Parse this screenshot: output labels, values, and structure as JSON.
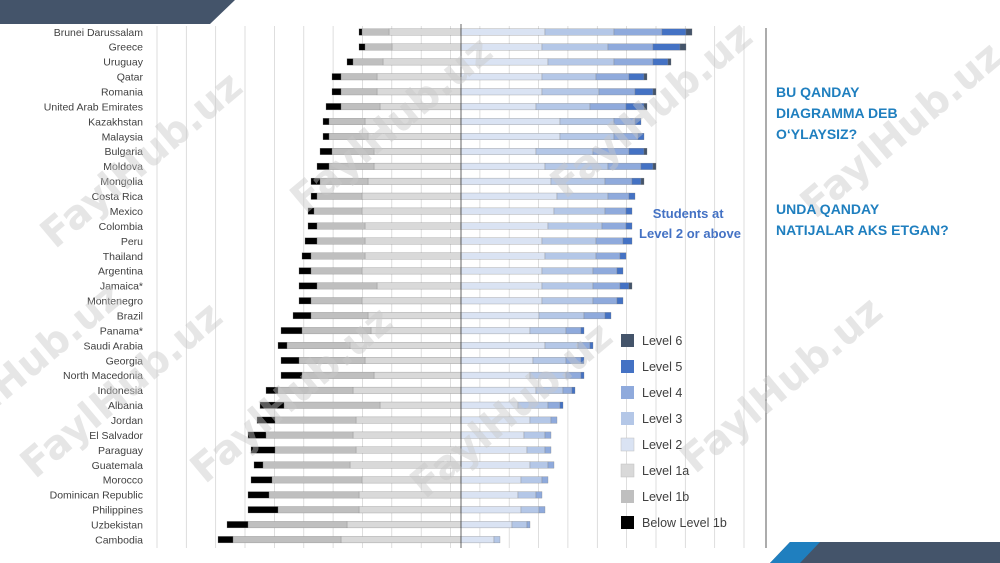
{
  "questions": {
    "q1": "BU QANDAY\nDIAGRAMMA DEB\nO‘YLAYSIZ?",
    "q2": " UNDA QANDAY\nNATIJALAR AKS ETGAN?"
  },
  "watermark_text": "FaylHub.uz",
  "colors": {
    "header_band": "#44546a",
    "accent_band": "#1f7fbf",
    "levels": [
      "#44546a",
      "#4472c4",
      "#8faadc",
      "#b4c7e7",
      "#dae3f3",
      "#d9d9d9",
      "#bfbfbf",
      "#000000"
    ]
  },
  "chart_data": {
    "type": "bar",
    "orientation": "horizontal",
    "stacked": "diverging",
    "baseline_note": "Bars split at Level 2: Level 2 and above extend right of the centre line, Level 1a and below extend left",
    "students_label": "Students at\nLevel 2 or above",
    "xlim": [
      -100,
      100
    ],
    "grid": true,
    "legend_placement": "right",
    "legend": [
      "Level 6",
      "Level 5",
      "Level 4",
      "Level 3",
      "Level 2",
      "Level 1a",
      "Level 1b",
      "Below Level 1b"
    ],
    "series_order": [
      "Below Level 1b",
      "Level 1b",
      "Level 1a",
      "Level 2",
      "Level 3",
      "Level 4",
      "Level 5",
      "Level 6"
    ],
    "categories": [
      "Brunei Darussalam",
      "Greece",
      "Uruguay",
      "Qatar",
      "Romania",
      "United Arab Emirates",
      "Kazakhstan",
      "Malaysia",
      "Bulgaria",
      "Moldova",
      "Mongolia",
      "Costa Rica",
      "Mexico",
      "Colombia",
      "Peru",
      "Thailand",
      "Argentina",
      "Jamaica*",
      "Montenegro",
      "Brazil",
      "Panama*",
      "Saudi Arabia",
      "Georgia",
      "North Macedonia",
      "Indonesia",
      "Albania",
      "Jordan",
      "El Salvador",
      "Paraguay",
      "Guatemala",
      "Morocco",
      "Dominican Republic",
      "Philippines",
      "Uzbekistan",
      "Cambodia"
    ],
    "values": [
      [
        1,
        9,
        24,
        28,
        23,
        16,
        8,
        2
      ],
      [
        2,
        9,
        23,
        27,
        22,
        15,
        9,
        2
      ],
      [
        2,
        10,
        26,
        29,
        22,
        13,
        5,
        1
      ],
      [
        3,
        12,
        28,
        27,
        18,
        11,
        5,
        1
      ],
      [
        3,
        12,
        28,
        27,
        19,
        12,
        6,
        1
      ],
      [
        5,
        13,
        27,
        25,
        18,
        12,
        6,
        1
      ],
      [
        2,
        12,
        32,
        33,
        18,
        7,
        2,
        0
      ],
      [
        2,
        13,
        31,
        33,
        18,
        8,
        2,
        0
      ],
      [
        4,
        14,
        29,
        25,
        19,
        12,
        5,
        1
      ],
      [
        4,
        15,
        29,
        28,
        21,
        11,
        4,
        1
      ],
      [
        3,
        16,
        31,
        30,
        18,
        9,
        3,
        1
      ],
      [
        2,
        15,
        33,
        32,
        17,
        7,
        2,
        0
      ],
      [
        2,
        16,
        33,
        31,
        17,
        7,
        2,
        0
      ],
      [
        3,
        16,
        32,
        29,
        18,
        8,
        2,
        0
      ],
      [
        4,
        16,
        32,
        27,
        18,
        9,
        3,
        0
      ],
      [
        3,
        18,
        32,
        28,
        17,
        8,
        2,
        0
      ],
      [
        4,
        17,
        33,
        27,
        17,
        8,
        2,
        0
      ],
      [
        6,
        20,
        28,
        27,
        17,
        9,
        3,
        1
      ],
      [
        4,
        17,
        33,
        27,
        17,
        8,
        2,
        0
      ],
      [
        6,
        19,
        31,
        26,
        15,
        7,
        2,
        0
      ],
      [
        7,
        23,
        30,
        23,
        12,
        5,
        1,
        0
      ],
      [
        3,
        21,
        37,
        28,
        11,
        4,
        1,
        0
      ],
      [
        6,
        22,
        32,
        24,
        11,
        5,
        1,
        0
      ],
      [
        7,
        24,
        29,
        23,
        12,
        5,
        1,
        0
      ],
      [
        4,
        25,
        36,
        25,
        9,
        3,
        1,
        0
      ],
      [
        8,
        32,
        27,
        19,
        10,
        4,
        1,
        0
      ],
      [
        6,
        27,
        35,
        23,
        7,
        2,
        0,
        0
      ],
      [
        6,
        29,
        36,
        21,
        7,
        2,
        0,
        0
      ],
      [
        8,
        27,
        35,
        22,
        6,
        2,
        0,
        0
      ],
      [
        3,
        29,
        37,
        23,
        6,
        2,
        0,
        0
      ],
      [
        7,
        30,
        33,
        20,
        7,
        2,
        0,
        0
      ],
      [
        7,
        30,
        34,
        19,
        6,
        2,
        0,
        0
      ],
      [
        10,
        27,
        34,
        20,
        6,
        2,
        0,
        0
      ],
      [
        7,
        33,
        38,
        17,
        5,
        1,
        0,
        0
      ],
      [
        5,
        36,
        40,
        11,
        2,
        0,
        0,
        0
      ]
    ]
  }
}
